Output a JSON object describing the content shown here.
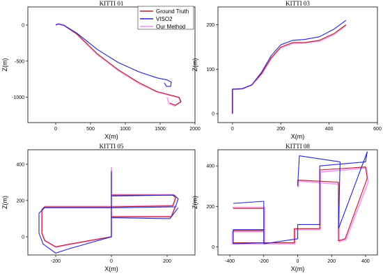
{
  "legend": [
    {
      "name": "Ground Truth",
      "color": "#b01e1e"
    },
    {
      "name": "VISO2",
      "color": "#2323c8"
    },
    {
      "name": "Our Method",
      "color": "#f08cf0"
    }
  ],
  "chart_data": [
    {
      "type": "line",
      "title": "KITTI 01",
      "xlabel": "X(m)",
      "ylabel": "Z(m)",
      "xlim": [
        -400,
        2000
      ],
      "ylim": [
        -1350,
        250
      ],
      "xticks": [
        0,
        500,
        1000,
        1500,
        2000
      ],
      "yticks": [
        0,
        -500,
        -1000
      ],
      "legend_position": "top-right",
      "series": [
        {
          "name": "Ground Truth",
          "points": [
            [
              0,
              0
            ],
            [
              40,
              15
            ],
            [
              120,
              -5
            ],
            [
              300,
              -120
            ],
            [
              600,
              -400
            ],
            [
              900,
              -620
            ],
            [
              1200,
              -800
            ],
            [
              1450,
              -920
            ],
            [
              1650,
              -970
            ],
            [
              1770,
              -1000
            ],
            [
              1800,
              -1060
            ],
            [
              1720,
              -1110
            ],
            [
              1640,
              -1080
            ]
          ]
        },
        {
          "name": "VISO2",
          "points": [
            [
              0,
              0
            ],
            [
              40,
              15
            ],
            [
              120,
              -5
            ],
            [
              300,
              -110
            ],
            [
              600,
              -340
            ],
            [
              900,
              -520
            ],
            [
              1200,
              -650
            ],
            [
              1450,
              -730
            ],
            [
              1600,
              -760
            ],
            [
              1660,
              -790
            ],
            [
              1650,
              -850
            ],
            [
              1590,
              -850
            ],
            [
              1560,
              -800
            ]
          ]
        },
        {
          "name": "Our Method",
          "points": [
            [
              0,
              0
            ],
            [
              40,
              15
            ],
            [
              120,
              -5
            ],
            [
              300,
              -125
            ],
            [
              600,
              -410
            ],
            [
              900,
              -630
            ],
            [
              1200,
              -810
            ],
            [
              1450,
              -925
            ],
            [
              1650,
              -975
            ],
            [
              1770,
              -1005
            ],
            [
              1790,
              -1065
            ],
            [
              1710,
              -1120
            ],
            [
              1630,
              -1090
            ],
            [
              1600,
              -1000
            ]
          ]
        }
      ]
    },
    {
      "type": "line",
      "title": "KITTI 03",
      "xlabel": "X(m)",
      "ylabel": "Z(m)",
      "xlim": [
        -60,
        600
      ],
      "ylim": [
        -20,
        240
      ],
      "xticks": [
        0,
        200,
        400,
        600
      ],
      "yticks": [
        0,
        100,
        200
      ],
      "series": [
        {
          "name": "Ground Truth",
          "points": [
            [
              0,
              0
            ],
            [
              0,
              55
            ],
            [
              40,
              56
            ],
            [
              80,
              65
            ],
            [
              120,
              90
            ],
            [
              160,
              125
            ],
            [
              200,
              150
            ],
            [
              250,
              160
            ],
            [
              300,
              160
            ],
            [
              360,
              165
            ],
            [
              420,
              180
            ],
            [
              470,
              200
            ]
          ]
        },
        {
          "name": "VISO2",
          "points": [
            [
              0,
              0
            ],
            [
              0,
              55
            ],
            [
              40,
              56
            ],
            [
              80,
              65
            ],
            [
              120,
              93
            ],
            [
              160,
              130
            ],
            [
              200,
              155
            ],
            [
              250,
              165
            ],
            [
              300,
              167
            ],
            [
              360,
              173
            ],
            [
              420,
              190
            ],
            [
              470,
              210
            ]
          ]
        },
        {
          "name": "Our Method",
          "points": [
            [
              0,
              0
            ],
            [
              0,
              55
            ],
            [
              40,
              56
            ],
            [
              80,
              64
            ],
            [
              120,
              88
            ],
            [
              160,
              123
            ],
            [
              200,
              148
            ],
            [
              250,
              158
            ],
            [
              300,
              159
            ],
            [
              360,
              163
            ],
            [
              420,
              178
            ],
            [
              470,
              198
            ]
          ]
        }
      ]
    },
    {
      "type": "line",
      "title": "KITTI 05",
      "xlabel": "X(m)",
      "ylabel": "Z(m)",
      "xlim": [
        -300,
        300
      ],
      "ylim": [
        -100,
        480
      ],
      "xticks": [
        -200,
        0,
        200
      ],
      "yticks": [
        0,
        200,
        400
      ],
      "series": [
        {
          "name": "Ground Truth",
          "points": [
            [
              0,
              0
            ],
            [
              0,
              360
            ],
            [
              0,
              230
            ],
            [
              220,
              230
            ],
            [
              230,
              215
            ],
            [
              220,
              170
            ],
            [
              0,
              165
            ],
            [
              -240,
              165
            ],
            [
              -250,
              150
            ],
            [
              -250,
              20
            ],
            [
              -240,
              -20
            ],
            [
              -200,
              -55
            ],
            [
              -150,
              -40
            ],
            [
              0,
              0
            ],
            [
              0,
              110
            ],
            [
              215,
              110
            ],
            [
              230,
              170
            ]
          ]
        },
        {
          "name": "VISO2",
          "points": [
            [
              0,
              0
            ],
            [
              0,
              360
            ],
            [
              0,
              225
            ],
            [
              225,
              230
            ],
            [
              240,
              210
            ],
            [
              230,
              165
            ],
            [
              0,
              160
            ],
            [
              -240,
              160
            ],
            [
              -260,
              130
            ],
            [
              -260,
              20
            ],
            [
              -245,
              -40
            ],
            [
              -200,
              -90
            ],
            [
              -150,
              -65
            ],
            [
              0,
              0
            ],
            [
              0,
              105
            ],
            [
              210,
              100
            ],
            [
              240,
              160
            ]
          ]
        },
        {
          "name": "Our Method",
          "points": [
            [
              0,
              0
            ],
            [
              0,
              380
            ],
            [
              0,
              232
            ],
            [
              222,
              232
            ],
            [
              232,
              215
            ],
            [
              222,
              172
            ],
            [
              0,
              167
            ],
            [
              -238,
              167
            ],
            [
              -248,
              150
            ],
            [
              -248,
              20
            ],
            [
              -238,
              -22
            ],
            [
              -198,
              -58
            ],
            [
              -148,
              -42
            ],
            [
              0,
              0
            ],
            [
              0,
              112
            ],
            [
              215,
              112
            ],
            [
              232,
              172
            ]
          ]
        }
      ]
    },
    {
      "type": "line",
      "title": "KITTI 08",
      "xlabel": "X(m)",
      "ylabel": "Z(m)",
      "xlim": [
        -470,
        470
      ],
      "ylim": [
        -40,
        480
      ],
      "xticks": [
        -400,
        -200,
        0,
        200,
        400
      ],
      "yticks": [
        0,
        200,
        400
      ],
      "series": [
        {
          "name": "Ground Truth",
          "points": [
            [
              -380,
              190
            ],
            [
              -200,
              190
            ],
            [
              -200,
              20
            ],
            [
              -380,
              20
            ],
            [
              -380,
              80
            ],
            [
              -200,
              80
            ],
            [
              -200,
              20
            ],
            [
              -20,
              20
            ],
            [
              -20,
              90
            ],
            [
              130,
              90
            ],
            [
              130,
              380
            ],
            [
              400,
              395
            ],
            [
              410,
              340
            ],
            [
              280,
              40
            ],
            [
              240,
              30
            ],
            [
              240,
              320
            ],
            [
              0,
              330
            ],
            [
              0,
              300
            ]
          ]
        },
        {
          "name": "VISO2",
          "points": [
            [
              -380,
              215
            ],
            [
              -200,
              225
            ],
            [
              -200,
              20
            ],
            [
              -380,
              15
            ],
            [
              -380,
              85
            ],
            [
              -200,
              85
            ],
            [
              -200,
              15
            ],
            [
              0,
              40
            ],
            [
              0,
              110
            ],
            [
              130,
              110
            ],
            [
              130,
              400
            ],
            [
              400,
              420
            ],
            [
              410,
              470
            ],
            [
              290,
              200
            ],
            [
              240,
              90
            ],
            [
              250,
              420
            ],
            [
              10,
              450
            ],
            [
              0,
              300
            ]
          ]
        },
        {
          "name": "Our Method",
          "points": [
            [
              -385,
              195
            ],
            [
              -195,
              195
            ],
            [
              -195,
              15
            ],
            [
              -385,
              15
            ],
            [
              -385,
              75
            ],
            [
              -195,
              75
            ],
            [
              -195,
              15
            ],
            [
              -15,
              15
            ],
            [
              -15,
              85
            ],
            [
              135,
              85
            ],
            [
              135,
              370
            ],
            [
              405,
              390
            ],
            [
              415,
              320
            ],
            [
              285,
              35
            ],
            [
              245,
              25
            ],
            [
              245,
              310
            ],
            [
              5,
              325
            ],
            [
              5,
              295
            ]
          ]
        }
      ]
    }
  ]
}
